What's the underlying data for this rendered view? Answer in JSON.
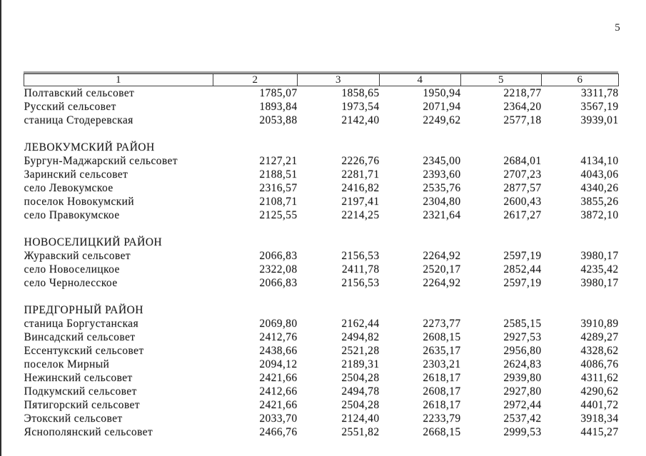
{
  "page": {
    "number": "5"
  },
  "table": {
    "columns": [
      "1",
      "2",
      "3",
      "4",
      "5",
      "6"
    ],
    "sections": [
      {
        "title": "",
        "rows": [
          {
            "name": "Полтавский сельсовет",
            "values": [
              "1785,07",
              "1858,65",
              "1950,94",
              "2218,77",
              "3311,78"
            ]
          },
          {
            "name": "Русский сельсовет",
            "values": [
              "1893,84",
              "1973,54",
              "2071,94",
              "2364,20",
              "3567,19"
            ]
          },
          {
            "name": "станица Стодеревская",
            "values": [
              "2053,88",
              "2142,40",
              "2249,62",
              "2577,18",
              "3939,01"
            ]
          }
        ]
      },
      {
        "title": "ЛЕВОКУМСКИЙ РАЙОН",
        "rows": [
          {
            "name": "Бургун-Маджарский сельсовет",
            "values": [
              "2127,21",
              "2226,76",
              "2345,00",
              "2684,01",
              "4134,10"
            ]
          },
          {
            "name": "Заринский сельсовет",
            "values": [
              "2188,51",
              "2281,71",
              "2393,60",
              "2707,23",
              "4043,06"
            ]
          },
          {
            "name": "село Левокумское",
            "values": [
              "2316,57",
              "2416,82",
              "2535,76",
              "2877,57",
              "4340,26"
            ]
          },
          {
            "name": "поселок Новокумский",
            "values": [
              "2108,71",
              "2197,41",
              "2304,80",
              "2600,43",
              "3855,26"
            ]
          },
          {
            "name": "село Правокумское",
            "values": [
              "2125,55",
              "2214,25",
              "2321,64",
              "2617,27",
              "3872,10"
            ]
          }
        ]
      },
      {
        "title": "НОВОСЕЛИЦКИЙ РАЙОН",
        "rows": [
          {
            "name": "Журавский сельсовет",
            "values": [
              "2066,83",
              "2156,53",
              "2264,92",
              "2597,19",
              "3980,17"
            ]
          },
          {
            "name": "село Новоселицкое",
            "values": [
              "2322,08",
              "2411,78",
              "2520,17",
              "2852,44",
              "4235,42"
            ]
          },
          {
            "name": "село Чернолесское",
            "values": [
              "2066,83",
              "2156,53",
              "2264,92",
              "2597,19",
              "3980,17"
            ]
          }
        ]
      },
      {
        "title": "ПРЕДГОРНЫЙ РАЙОН",
        "rows": [
          {
            "name": "станица Боргустанская",
            "values": [
              "2069,80",
              "2162,44",
              "2273,77",
              "2585,15",
              "3910,89"
            ]
          },
          {
            "name": "Винсадский сельсовет",
            "values": [
              "2412,76",
              "2494,82",
              "2608,15",
              "2927,53",
              "4289,27"
            ]
          },
          {
            "name": "Ессентукский сельсовет",
            "values": [
              "2438,66",
              "2521,28",
              "2635,17",
              "2956,80",
              "4328,62"
            ]
          },
          {
            "name": "поселок Мирный",
            "values": [
              "2094,12",
              "2189,31",
              "2303,21",
              "2624,83",
              "4086,76"
            ]
          },
          {
            "name": "Нежинский сельсовет",
            "values": [
              "2421,66",
              "2504,28",
              "2618,17",
              "2939,80",
              "4311,62"
            ]
          },
          {
            "name": "Подкумский сельсовет",
            "values": [
              "2412,66",
              "2494,78",
              "2608,17",
              "2927,80",
              "4290,62"
            ]
          },
          {
            "name": "Пятигорский сельсовет",
            "values": [
              "2421,66",
              "2504,28",
              "2618,17",
              "2972,44",
              "4401,72"
            ]
          },
          {
            "name": "Этокский сельсовет",
            "values": [
              "2033,70",
              "2124,40",
              "2233,79",
              "2537,42",
              "3918,34"
            ]
          },
          {
            "name": "Яснополянский сельсовет",
            "values": [
              "2466,76",
              "2551,82",
              "2668,15",
              "2999,53",
              "4415,27"
            ]
          }
        ]
      }
    ]
  }
}
